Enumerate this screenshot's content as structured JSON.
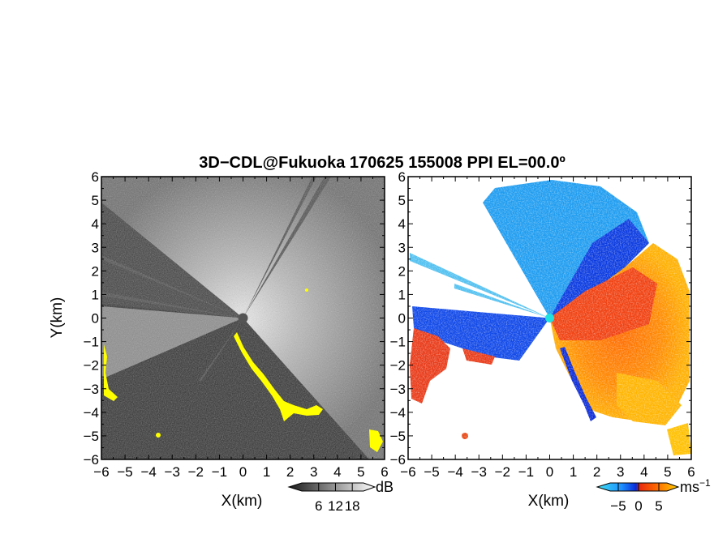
{
  "figure": {
    "title": "3D−CDL@Fukuoka 170625 155008 PPI EL=00.0º"
  },
  "chart_data": [
    {
      "type": "heatmap",
      "name": "reflectivity-ppi",
      "xlabel": "X(km)",
      "ylabel": "Y(km)",
      "xlim": [
        -6,
        6
      ],
      "ylim": [
        -6,
        6
      ],
      "xticks": [
        -6,
        -5,
        -4,
        -3,
        -2,
        -1,
        0,
        1,
        2,
        3,
        4,
        5,
        6
      ],
      "yticks": [
        -6,
        -5,
        -4,
        -3,
        -2,
        -1,
        0,
        1,
        2,
        3,
        4,
        5,
        6
      ],
      "xtick_labels": [
        "−6",
        "−5",
        "−4",
        "−3",
        "−2",
        "−1",
        "0",
        "1",
        "2",
        "3",
        "4",
        "5",
        "6"
      ],
      "ytick_labels": [
        "−6",
        "−5",
        "−4",
        "−3",
        "−2",
        "−1",
        "0",
        "1",
        "2",
        "3",
        "4",
        "5",
        "6"
      ],
      "colorbar": {
        "unit": "dB",
        "ticks": [
          6,
          12,
          18
        ],
        "range": [
          0,
          22
        ],
        "colors": [
          "#1a1a1a",
          "#ffffff"
        ]
      },
      "grid": false
    },
    {
      "type": "heatmap",
      "name": "doppler-velocity-ppi",
      "xlabel": "X(km)",
      "xlim": [
        -6,
        6
      ],
      "ylim": [
        -6,
        6
      ],
      "xticks": [
        -6,
        -5,
        -4,
        -3,
        -2,
        -1,
        0,
        1,
        2,
        3,
        4,
        5,
        6
      ],
      "yticks": [
        -6,
        -5,
        -4,
        -3,
        -2,
        -1,
        0,
        1,
        2,
        3,
        4,
        5,
        6
      ],
      "xtick_labels": [
        "−6",
        "−5",
        "−4",
        "−3",
        "−2",
        "−1",
        "0",
        "1",
        "2",
        "3",
        "4",
        "5",
        "6"
      ],
      "ytick_labels": [
        "−6",
        "−5",
        "−4",
        "−3",
        "−2",
        "−1",
        "0",
        "1",
        "2",
        "3",
        "4",
        "5",
        "6"
      ],
      "colorbar": {
        "unit": "ms",
        "unit_exp": "−1",
        "ticks": [
          -5,
          0,
          5
        ],
        "tick_labels": [
          "−5",
          "0",
          "5"
        ],
        "range": [
          -7,
          7
        ],
        "colors": [
          "#40e0f0",
          "#1e90ff",
          "#0a2ad8",
          "#e82a10",
          "#ff7000",
          "#ffd000"
        ]
      },
      "grid": false
    }
  ],
  "colors": {
    "axis": "#000000",
    "highlight": "#ffff00",
    "center_marker_left": "#555555",
    "center_marker_right": "#20e0e0"
  }
}
